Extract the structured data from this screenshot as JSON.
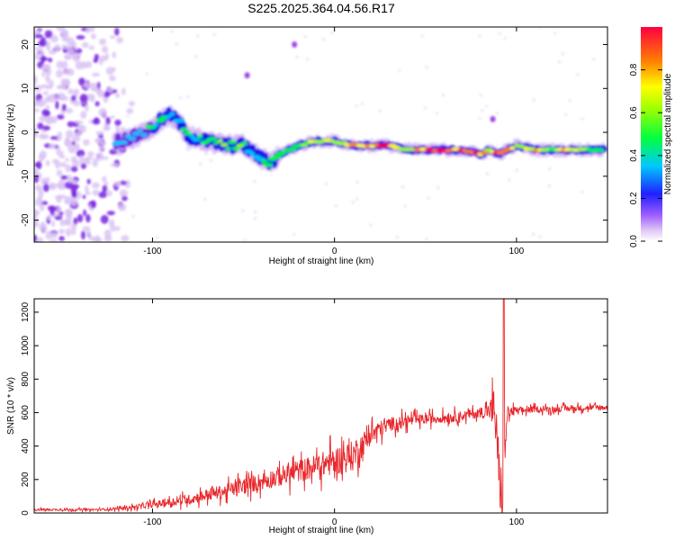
{
  "title": "S225.2025.364.04.56.R17",
  "chart_data": [
    {
      "type": "heatmap",
      "xlabel": "Height of straight line (km)",
      "ylabel": "Frequency (Hz)",
      "xlim": [
        -165,
        150
      ],
      "ylim": [
        -25,
        24
      ],
      "xticks": [
        -100,
        0,
        100
      ],
      "yticks": [
        20,
        10,
        0,
        -10,
        -20
      ],
      "colorbar": {
        "label": "Normalized spectral amplitude",
        "range": [
          0.0,
          1.0
        ],
        "ticks": [
          "0.0",
          "0.2",
          "0.4",
          "0.6",
          "0.8"
        ],
        "tick_values": [
          0.0,
          0.2,
          0.4,
          0.6,
          0.8
        ]
      },
      "ridge": {
        "x": [
          -120,
          -110,
          -100,
          -95,
          -90,
          -85,
          -80,
          -70,
          -60,
          -50,
          -40,
          -35,
          -30,
          -20,
          -10,
          0,
          10,
          20,
          30,
          40,
          50,
          60,
          70,
          80,
          85,
          90,
          100,
          110,
          120,
          130,
          140,
          148
        ],
        "y": [
          -2,
          -1,
          1,
          3,
          4,
          2,
          -1,
          -2,
          -3,
          -3,
          -6,
          -7,
          -5,
          -3,
          -2,
          -2,
          -3,
          -3,
          -3,
          -4,
          -4,
          -4,
          -4,
          -5,
          -4,
          -5,
          -3,
          -4,
          -4,
          -4,
          -4,
          -4
        ],
        "amplitude": [
          0.3,
          0.3,
          0.4,
          0.45,
          0.4,
          0.35,
          0.4,
          0.45,
          0.5,
          0.45,
          0.4,
          0.4,
          0.4,
          0.5,
          0.6,
          0.6,
          0.85,
          0.75,
          0.95,
          0.6,
          0.9,
          0.95,
          0.75,
          0.9,
          0.6,
          0.95,
          0.6,
          0.7,
          0.55,
          0.8,
          0.55,
          0.5
        ]
      },
      "noise_region_x": [
        -165,
        -115
      ],
      "bright_spots": [
        {
          "x": -22,
          "y": 20
        },
        {
          "x": -48,
          "y": 13
        },
        {
          "x": 87,
          "y": 3
        }
      ],
      "palette": [
        "#e0c8f5",
        "#8a2be2",
        "#0000ff",
        "#00e5ff",
        "#00ff40",
        "#ffff00",
        "#ff8000",
        "#ff0040"
      ]
    },
    {
      "type": "line",
      "xlabel": "Height of straight line (km)",
      "ylabel": "SNR (10 * v/v)",
      "xlim": [
        -165,
        150
      ],
      "ylim": [
        0,
        1280
      ],
      "xticks": [
        -100,
        0,
        100
      ],
      "yticks": [
        0,
        200,
        400,
        600,
        800,
        1000,
        1200
      ],
      "color": "#e8262a",
      "series": [
        {
          "x": [
            -165,
            -150,
            -130,
            -120,
            -110,
            -100,
            -90,
            -80,
            -70,
            -60,
            -50,
            -40,
            -30,
            -20,
            -10,
            0,
            10,
            20,
            30,
            40,
            50,
            60,
            70,
            80,
            85,
            88,
            90,
            92,
            95,
            100,
            110,
            120,
            130,
            140,
            150
          ],
          "values": [
            20,
            20,
            20,
            25,
            35,
            50,
            65,
            80,
            110,
            130,
            160,
            190,
            220,
            250,
            280,
            310,
            340,
            470,
            530,
            550,
            560,
            570,
            580,
            600,
            610,
            620,
            300,
            60,
            600,
            610,
            620,
            620,
            625,
            630,
            630
          ],
          "noise": [
            10,
            10,
            10,
            15,
            20,
            30,
            40,
            50,
            60,
            70,
            80,
            90,
            100,
            110,
            120,
            140,
            150,
            100,
            70,
            60,
            50,
            50,
            50,
            50,
            80,
            250,
            300,
            300,
            60,
            40,
            30,
            30,
            30,
            30,
            30
          ]
        }
      ],
      "spike": {
        "x": 93,
        "max": 1280,
        "min": 60
      }
    }
  ]
}
